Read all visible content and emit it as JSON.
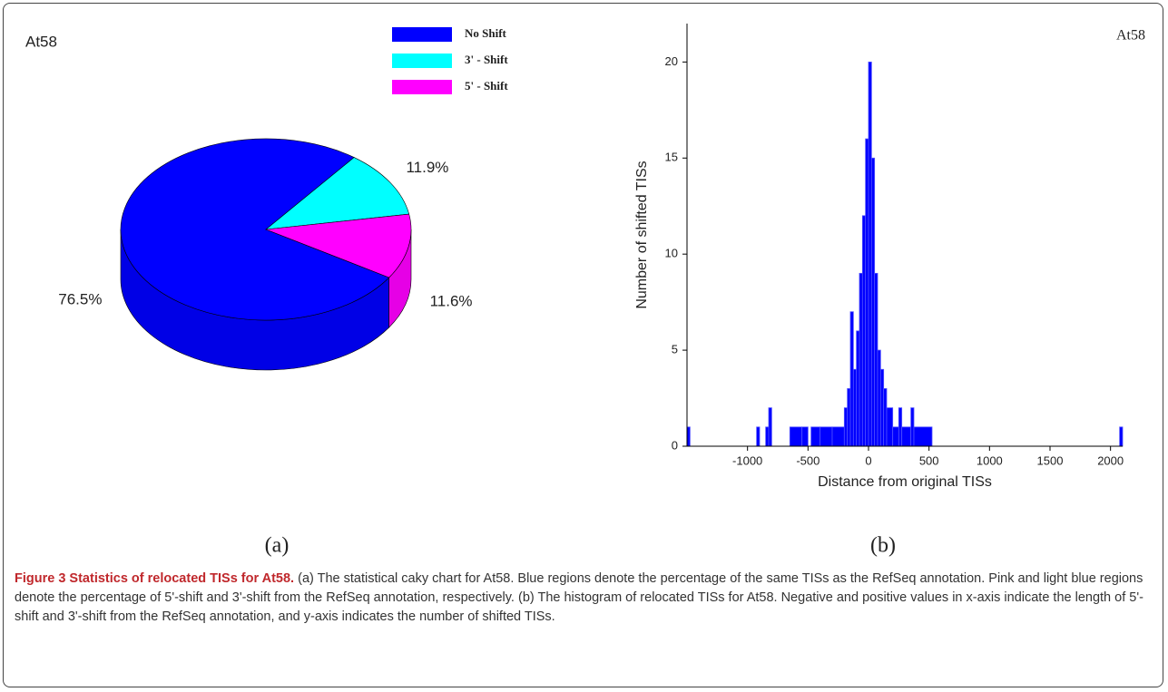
{
  "chart_data": [
    {
      "type": "pie",
      "title": "At58",
      "panel_label": "(a)",
      "categories": [
        "No  Shift",
        "3' - Shift",
        "5' - Shift"
      ],
      "values": [
        76.5,
        11.9,
        11.6
      ],
      "value_labels": [
        "76.5%",
        "11.9%",
        "11.6%"
      ],
      "colors": [
        "#0000ff",
        "#00ffff",
        "#ff00ff"
      ],
      "legend": "top-right"
    },
    {
      "type": "histogram",
      "title": "At58",
      "panel_label": "(b)",
      "x_label": "Distance from original TISs",
      "y_label": "Number of shifted TISs",
      "bins": [
        -1500,
        -1475,
        -925,
        -900,
        -850,
        -825,
        -800,
        -650,
        -550,
        -500,
        -475,
        -400,
        -300,
        -200,
        -175,
        -150,
        -125,
        -100,
        -75,
        -50,
        -25,
        0,
        25,
        50,
        75,
        100,
        125,
        150,
        200,
        250,
        275,
        350,
        375,
        525,
        2075,
        2100
      ],
      "values": [
        1,
        0,
        1,
        0,
        1,
        2,
        0,
        1,
        1,
        0,
        1,
        1,
        1,
        2,
        3,
        7,
        4,
        6,
        9,
        12,
        16,
        20,
        15,
        9,
        5,
        4,
        3,
        2,
        1,
        2,
        1,
        2,
        1,
        0,
        1
      ],
      "color": "#0000ff",
      "xlim": [
        -1500,
        2100
      ],
      "xticks": [
        -1000,
        -500,
        0,
        500,
        1000,
        1500,
        2000
      ],
      "ylim": [
        0,
        22
      ],
      "yticks": [
        0,
        5,
        10,
        15,
        20
      ]
    }
  ],
  "caption": {
    "title": "Figure 3 Statistics of relocated TISs for At58.",
    "text": "(a) The statistical caky chart for At58. Blue regions denote the percentage of the same TISs as the RefSeq annotation. Pink and light blue regions denote the percentage of 5'-shift and 3'-shift from the RefSeq annotation, respectively. (b) The histogram of relocated TISs for At58. Negative and positive values in x-axis indicate the length of 5'-shift and 3'-shift from the RefSeq annotation, and y-axis indicates the number of shifted TISs."
  }
}
